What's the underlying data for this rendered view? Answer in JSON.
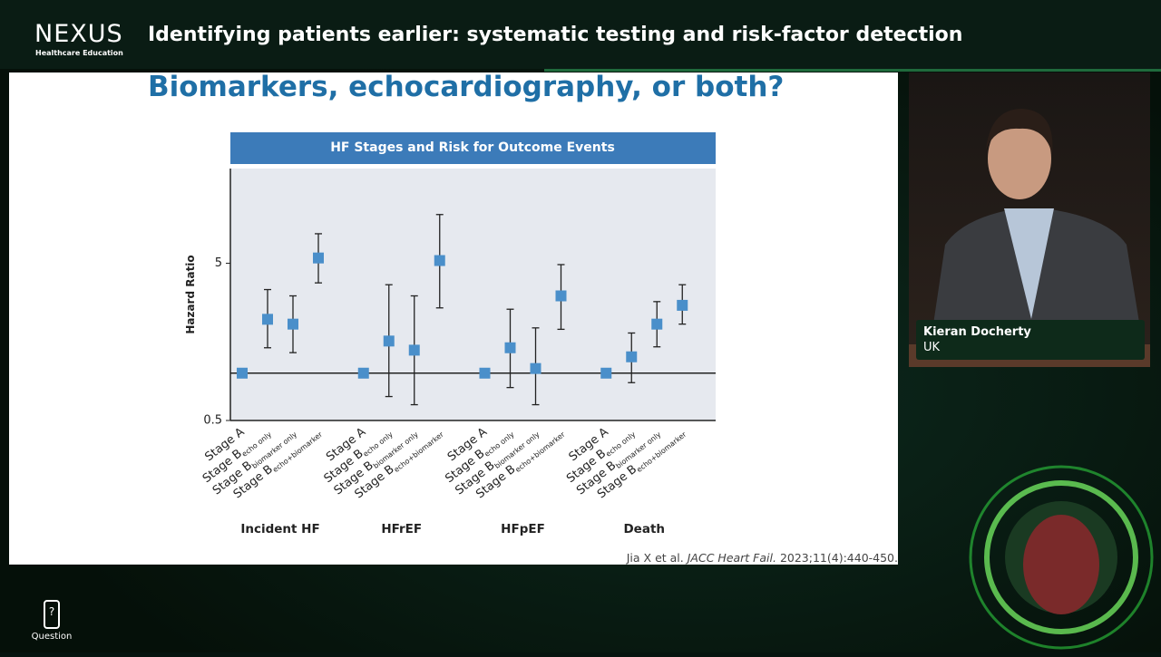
{
  "header": {
    "logo": "NEXUS",
    "logo_tagline": "Healthcare Education",
    "title": "Identifying patients earlier: systematic testing and risk-factor detection"
  },
  "slide": {
    "title": "Biomarkers, echocardiography, or both?",
    "citation": {
      "authors": "Jia X et al.",
      "journal": "JACC Heart Fail.",
      "details": "2023;11(4):440-450."
    }
  },
  "chart_data": {
    "type": "errorbar",
    "title": "HF Stages and Risk for Outcome Events",
    "y_label": "Hazard Ratio",
    "categories": [
      "Stage A",
      "Stage B",
      "Stage B",
      "Stage B"
    ],
    "category_subscripts": [
      null,
      "echo only",
      "biomarker only",
      "echo+biomarker"
    ],
    "series": [
      {
        "name": "Incident HF",
        "color": "#4a8fca",
        "values": [
          1.0,
          2.2,
          2.05,
          5.4
        ],
        "lower": [
          null,
          1.45,
          1.35,
          3.75
        ],
        "upper": [
          null,
          3.4,
          3.1,
          7.7
        ]
      },
      {
        "name": "HFrEF",
        "color": "#4a8fca",
        "values": [
          1.0,
          1.6,
          1.4,
          5.2
        ],
        "lower": [
          null,
          0.71,
          0.63,
          2.6
        ],
        "upper": [
          null,
          3.65,
          3.1,
          10.2
        ]
      },
      {
        "name": "HFpEF",
        "color": "#4a8fca",
        "values": [
          1.0,
          1.45,
          1.07,
          3.1
        ],
        "lower": [
          null,
          0.81,
          0.63,
          1.9
        ],
        "upper": [
          null,
          2.55,
          1.94,
          4.9
        ]
      },
      {
        "name": "Death",
        "color": "#4a8fca",
        "values": [
          1.0,
          1.27,
          2.05,
          2.7
        ],
        "lower": [
          null,
          0.87,
          1.47,
          2.05
        ],
        "upper": [
          null,
          1.8,
          2.85,
          3.65
        ]
      }
    ],
    "ylim": [
      0.5,
      20
    ],
    "yticks": [
      0.5,
      5
    ],
    "log_y": true,
    "reference_line": 1
  },
  "speaker": {
    "name": "Kieran Docherty",
    "country": "UK"
  },
  "controls": {
    "question": "Question"
  }
}
